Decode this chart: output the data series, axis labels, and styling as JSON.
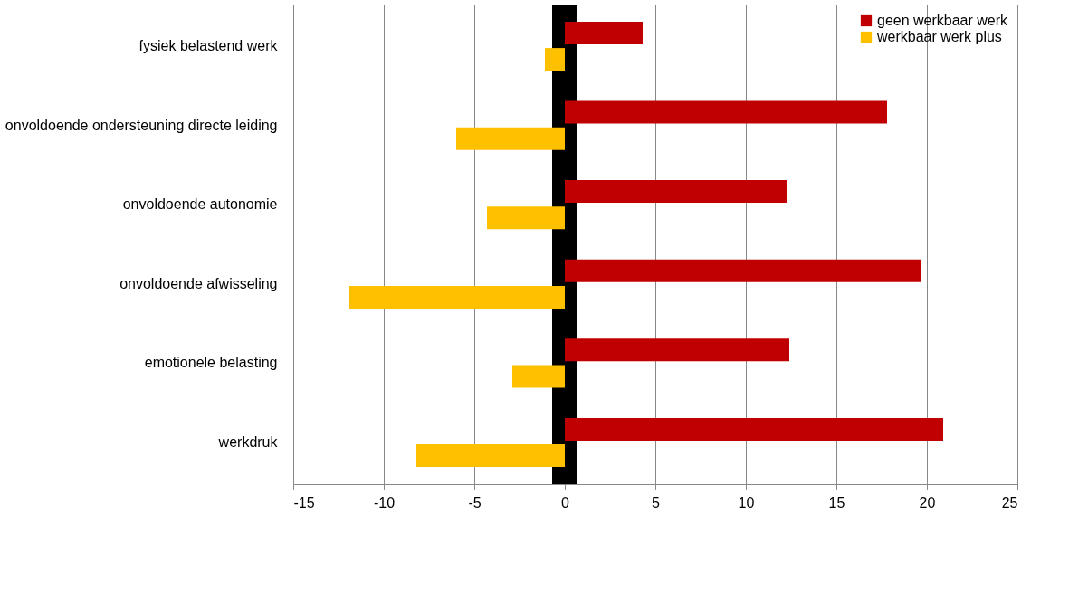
{
  "chart_data": {
    "type": "bar",
    "orientation": "horizontal",
    "categories": [
      "fysiek belastend werk",
      "onvoldoende ondersteuning directe leiding",
      "onvoldoende autonomie",
      "onvoldoende afwisseling",
      "emotionele belasting",
      "werkdruk"
    ],
    "series": [
      {
        "name": "geen werkbaar werk",
        "color": "#c00000",
        "values": [
          4.3,
          17.8,
          12.3,
          19.7,
          12.4,
          20.9
        ]
      },
      {
        "name": "werkbaar werk plus",
        "color": "#ffc000",
        "values": [
          -1.1,
          -6.0,
          -4.3,
          -11.9,
          -2.9,
          -8.2
        ]
      }
    ],
    "xlim": [
      -15,
      25
    ],
    "xticks": [
      -15,
      -10,
      -5,
      0,
      5,
      10,
      15,
      20,
      25
    ],
    "grid": "x",
    "legend": "top right",
    "bands": [
      {
        "axis": "x",
        "from": -0.7,
        "to": 0.7,
        "color": "#000000"
      }
    ]
  }
}
